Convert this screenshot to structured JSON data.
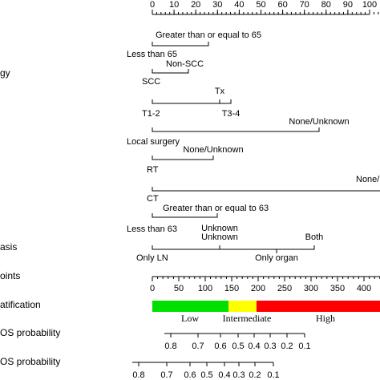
{
  "points_axis": {
    "ticks": [
      0,
      10,
      20,
      30,
      40,
      50,
      60,
      70,
      80,
      90,
      100
    ]
  },
  "rows": [
    {
      "levels": [
        "Greater than or equal to 65",
        "Less than 65"
      ]
    },
    {
      "label": "gy",
      "levels": [
        "Non-SCC",
        "SCC"
      ]
    },
    {
      "levels": [
        "Tx",
        "T1-2",
        "T3-4"
      ]
    },
    {
      "levels": [
        "None/Unknown",
        "Local surgery"
      ]
    },
    {
      "levels": [
        "None/Unknown",
        "RT"
      ]
    },
    {
      "levels": [
        "None/U",
        "CT"
      ]
    },
    {
      "levels": [
        "Greater than or equal to 63",
        "Less than 63"
      ]
    },
    {
      "label": "asis",
      "levels": [
        "Unknown",
        "Unknown",
        "Both",
        "Only LN",
        "Only organ"
      ]
    }
  ],
  "total_points": {
    "label": "oints",
    "ticks": [
      0,
      50,
      100,
      150,
      200,
      250,
      300,
      350,
      400
    ]
  },
  "risk": {
    "label": "atification",
    "groups": [
      "Low",
      "Intermediate",
      "High"
    ]
  },
  "os3": {
    "label": "OS probability",
    "ticks": [
      0.8,
      0.7,
      0.6,
      0.5,
      0.4,
      0.3,
      0.2,
      0.1
    ]
  },
  "os5": {
    "label": "OS probability",
    "ticks": [
      0.8,
      0.7,
      0.6,
      0.5,
      0.4,
      0.3,
      0.2,
      0.1
    ]
  }
}
